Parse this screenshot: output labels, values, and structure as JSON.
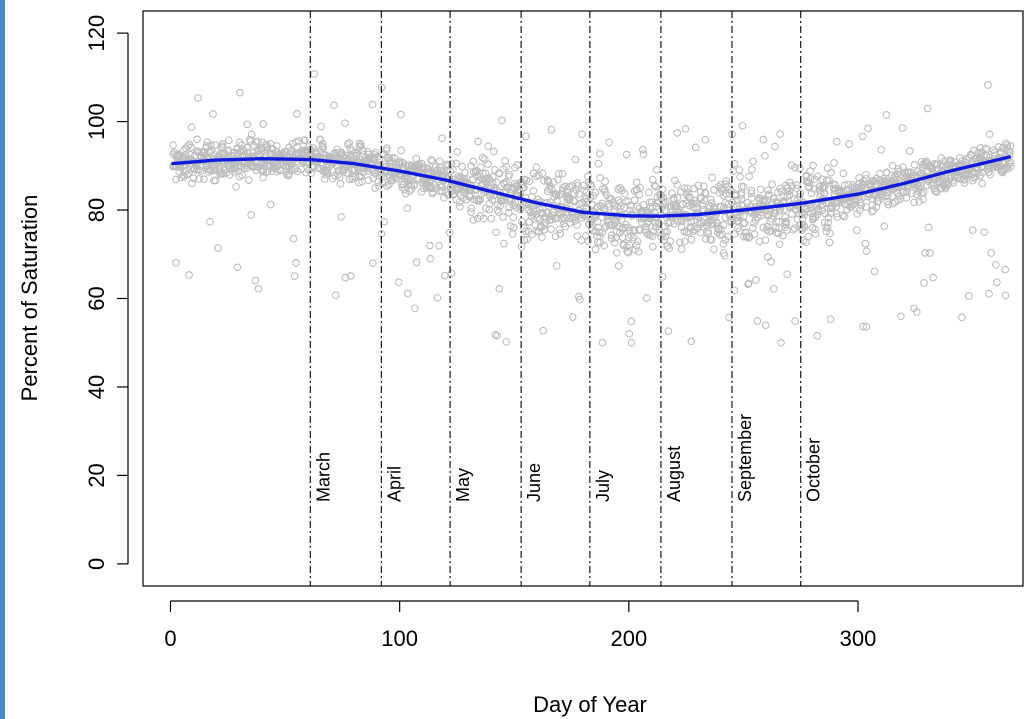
{
  "colors": {
    "points": "#bdbdbd",
    "curve": "#0f1bdc",
    "axis": "#000000",
    "month_lines": "#000000",
    "accent_bar": "#4f86c6"
  },
  "chart_data": {
    "type": "scatter",
    "xlabel": "Day of Year",
    "ylabel": "Percent of Saturation",
    "xlim": [
      -12,
      372
    ],
    "ylim": [
      -5,
      125
    ],
    "x_ticks": [
      0,
      100,
      200,
      300
    ],
    "y_ticks": [
      0,
      20,
      40,
      60,
      80,
      100,
      120
    ],
    "grid": false,
    "scatter_series": {
      "marker": "open-circle",
      "y_range_approx": [
        50,
        113
      ]
    },
    "smooth_curve": {
      "x": [
        1,
        20,
        40,
        61,
        80,
        100,
        120,
        140,
        160,
        180,
        200,
        213,
        230,
        250,
        275,
        300,
        320,
        340,
        366
      ],
      "y": [
        90.5,
        91.3,
        91.6,
        91.4,
        90.5,
        88.8,
        86.8,
        84.2,
        81.6,
        79.5,
        78.7,
        78.6,
        79.0,
        80.0,
        81.5,
        83.6,
        86.0,
        88.8,
        92.0
      ]
    },
    "month_markers": [
      {
        "label": "March",
        "day": 61
      },
      {
        "label": "April",
        "day": 92
      },
      {
        "label": "May",
        "day": 122
      },
      {
        "label": "June",
        "day": 153
      },
      {
        "label": "July",
        "day": 183
      },
      {
        "label": "August",
        "day": 214
      },
      {
        "label": "September",
        "day": 245
      },
      {
        "label": "October",
        "day": 275
      }
    ],
    "month_label_y": 14
  }
}
